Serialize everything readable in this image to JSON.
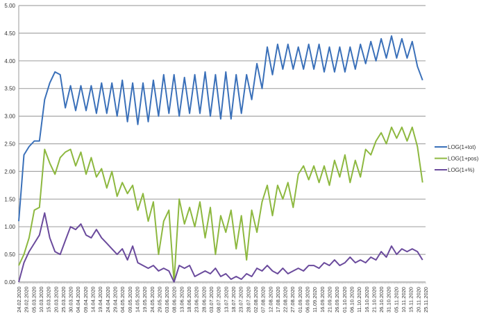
{
  "chart_data": {
    "type": "line",
    "title": "",
    "xlabel": "",
    "ylabel": "",
    "ylim": [
      0,
      5
    ],
    "y_ticks": [
      "0.00",
      "0.50",
      "1.00",
      "1.50",
      "2.00",
      "2.50",
      "3.00",
      "3.50",
      "4.00",
      "4.50",
      "5.00"
    ],
    "grid": "horizontal",
    "legend_position": "right",
    "x_start_date": "24.02.2020",
    "x_range_days": [
      0,
      275
    ],
    "x_step_days": 3.5,
    "x_tick_labels": [
      "24.02.2020",
      "29.02.2020",
      "05.03.2020",
      "10.03.2020",
      "15.03.2020",
      "20.03.2020",
      "25.03.2020",
      "30.03.2020",
      "04.04.2020",
      "09.04.2020",
      "14.04.2020",
      "19.04.2020",
      "24.04.2020",
      "29.04.2020",
      "04.05.2020",
      "09.05.2020",
      "14.05.2020",
      "19.05.2020",
      "24.05.2020",
      "29.05.2020",
      "03.06.2020",
      "08.06.2020",
      "13.06.2020",
      "18.06.2020",
      "23.06.2020",
      "28.06.2020",
      "03.07.2020",
      "08.07.2020",
      "13.07.2020",
      "18.07.2020",
      "23.07.2020",
      "28.07.2020",
      "02.08.2020",
      "07.08.2020",
      "12.08.2020",
      "17.08.2020",
      "22.08.2020",
      "27.08.2020",
      "01.09.2020",
      "06.09.2020",
      "11.09.2020",
      "16.09.2020",
      "21.09.2020",
      "26.09.2020",
      "01.10.2020",
      "06.10.2020",
      "11.10.2020",
      "16.10.2020",
      "21.10.2020",
      "26.10.2020",
      "31.10.2020",
      "05.11.2020",
      "10.11.2020",
      "15.11.2020",
      "20.11.2020",
      "25.11.2020"
    ],
    "series": [
      {
        "name": "LOG(1+tot)",
        "color": "#3a70b9",
        "values": [
          1.1,
          2.3,
          2.45,
          2.55,
          2.55,
          3.3,
          3.6,
          3.8,
          3.75,
          3.15,
          3.55,
          3.1,
          3.55,
          3.1,
          3.55,
          3.05,
          3.6,
          3.05,
          3.6,
          3.0,
          3.65,
          2.9,
          3.6,
          2.85,
          3.6,
          2.9,
          3.65,
          3.0,
          3.75,
          3.05,
          3.75,
          3.0,
          3.7,
          3.05,
          3.75,
          3.05,
          3.8,
          3.0,
          3.75,
          2.95,
          3.8,
          2.95,
          3.75,
          3.05,
          3.75,
          3.3,
          3.95,
          3.5,
          4.25,
          3.75,
          4.3,
          3.85,
          4.3,
          3.85,
          4.25,
          3.85,
          4.3,
          3.85,
          4.3,
          3.8,
          4.25,
          3.8,
          4.25,
          3.8,
          4.25,
          3.85,
          4.3,
          3.95,
          4.35,
          4.0,
          4.4,
          4.05,
          4.45,
          4.05,
          4.4,
          4.05,
          4.35,
          3.9,
          3.65
        ]
      },
      {
        "name": "LOG(1+pos)",
        "color": "#8db83f",
        "values": [
          0.3,
          0.5,
          0.8,
          1.3,
          1.35,
          2.4,
          2.15,
          1.95,
          2.25,
          2.35,
          2.4,
          2.1,
          2.35,
          1.95,
          2.25,
          1.9,
          2.05,
          1.7,
          2.0,
          1.55,
          1.8,
          1.6,
          1.75,
          1.3,
          1.6,
          1.1,
          1.45,
          0.5,
          1.1,
          1.3,
          0.0,
          1.5,
          1.05,
          1.35,
          1.0,
          1.45,
          0.8,
          1.35,
          0.5,
          1.2,
          0.9,
          1.3,
          0.6,
          1.2,
          0.4,
          1.3,
          0.9,
          1.45,
          1.75,
          1.2,
          1.75,
          1.5,
          1.8,
          1.35,
          1.95,
          2.1,
          1.85,
          2.1,
          1.8,
          2.1,
          1.75,
          2.2,
          1.9,
          2.3,
          1.8,
          2.2,
          1.9,
          2.4,
          2.3,
          2.55,
          2.7,
          2.5,
          2.8,
          2.6,
          2.8,
          2.55,
          2.8,
          2.45,
          1.8
        ]
      },
      {
        "name": "LOG(1+%)",
        "color": "#6a4a9c",
        "values": [
          0.0,
          0.35,
          0.55,
          0.7,
          0.85,
          1.25,
          0.8,
          0.55,
          0.5,
          0.75,
          1.0,
          0.95,
          1.05,
          0.85,
          0.8,
          0.95,
          0.8,
          0.7,
          0.6,
          0.5,
          0.6,
          0.4,
          0.65,
          0.35,
          0.3,
          0.25,
          0.3,
          0.2,
          0.25,
          0.2,
          0.0,
          0.3,
          0.25,
          0.3,
          0.1,
          0.15,
          0.2,
          0.15,
          0.25,
          0.1,
          0.15,
          0.05,
          0.1,
          0.05,
          0.15,
          0.1,
          0.25,
          0.2,
          0.3,
          0.2,
          0.15,
          0.25,
          0.15,
          0.2,
          0.25,
          0.2,
          0.3,
          0.3,
          0.25,
          0.35,
          0.3,
          0.4,
          0.3,
          0.35,
          0.45,
          0.35,
          0.4,
          0.35,
          0.45,
          0.4,
          0.55,
          0.45,
          0.65,
          0.5,
          0.6,
          0.55,
          0.6,
          0.55,
          0.4
        ]
      }
    ]
  }
}
